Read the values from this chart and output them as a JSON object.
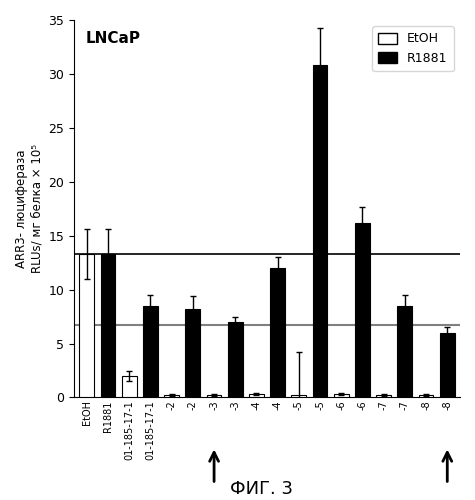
{
  "title": "LNCaP",
  "ylabel": "ARR3- люцифераза\nRLUs/ мг белка × 10⁵",
  "fig_label": "ФИГ. 3",
  "ylim": [
    0,
    35
  ],
  "yticks": [
    0,
    5,
    10,
    15,
    20,
    25,
    30,
    35
  ],
  "hline1": 13.3,
  "hline2": 6.7,
  "bar_labels": [
    "EtOH",
    "R1881",
    "01-185-17-1",
    "01-185-17-1",
    "-2",
    "-2",
    "-3",
    "-3",
    "-4",
    "-4",
    "-5",
    "-5",
    "-6",
    "-6",
    "-7",
    "-7",
    "-8",
    "-8"
  ],
  "bar_values": [
    13.3,
    13.3,
    2.0,
    8.5,
    0.2,
    8.2,
    0.2,
    7.0,
    0.3,
    12.0,
    0.2,
    30.8,
    0.3,
    16.2,
    0.2,
    8.5,
    0.2,
    6.0
  ],
  "bar_errors": [
    2.3,
    2.3,
    0.5,
    1.0,
    0.1,
    1.2,
    0.1,
    0.5,
    0.1,
    1.0,
    4.0,
    3.5,
    0.1,
    1.5,
    0.1,
    1.0,
    0.1,
    0.5
  ],
  "bar_colors": [
    "white",
    "black",
    "white",
    "black",
    "white",
    "black",
    "white",
    "black",
    "white",
    "black",
    "white",
    "black",
    "white",
    "black",
    "white",
    "black",
    "white",
    "black"
  ],
  "bar_edgecolors": [
    "black",
    "black",
    "black",
    "black",
    "black",
    "black",
    "black",
    "black",
    "black",
    "black",
    "black",
    "black",
    "black",
    "black",
    "black",
    "black",
    "black",
    "black"
  ],
  "arrow_bar_indices": [
    6,
    17
  ],
  "bar_width": 0.7,
  "background_color": "white"
}
